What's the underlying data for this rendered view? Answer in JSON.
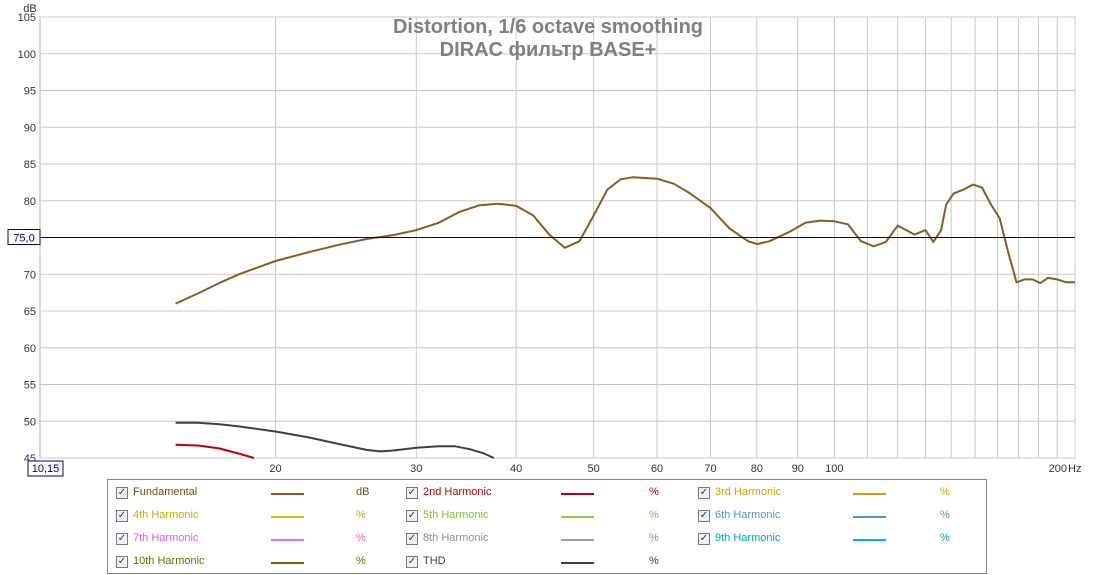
{
  "chart_data": {
    "type": "line",
    "title": "Distortion, 1/6 octave smoothing",
    "subtitle": "DIRAC фильтр BASE+",
    "ylabel": "dB",
    "xunit": "Hz",
    "xscale": "log",
    "xlim": [
      10.15,
      200
    ],
    "ylim": [
      45,
      105
    ],
    "yticks": [
      "105",
      "100",
      "95",
      "90",
      "85",
      "80",
      "75",
      "70",
      "65",
      "60",
      "55",
      "50",
      "45"
    ],
    "xticks": [
      "20",
      "30",
      "40",
      "50",
      "60",
      "70",
      "80",
      "90",
      "100",
      "200"
    ],
    "x_cursor_label": "10,15",
    "y_cursor_label": "75,0",
    "y_cursor_value": 75.0,
    "grid": true,
    "series": [
      {
        "name": "Fundamental",
        "color": "#8b5a2b",
        "points": [
          [
            15,
            66.0
          ],
          [
            16,
            67.4
          ],
          [
            17,
            68.8
          ],
          [
            18,
            70.0
          ],
          [
            20,
            71.8
          ],
          [
            22,
            73.0
          ],
          [
            24,
            74.0
          ],
          [
            26,
            74.8
          ],
          [
            28,
            75.3
          ],
          [
            30,
            76.0
          ],
          [
            32,
            77.0
          ],
          [
            34,
            78.5
          ],
          [
            36,
            79.4
          ],
          [
            38,
            79.6
          ],
          [
            40,
            79.3
          ],
          [
            42,
            78.0
          ],
          [
            44,
            75.4
          ],
          [
            46,
            73.6
          ],
          [
            48,
            74.5
          ],
          [
            50,
            78.0
          ],
          [
            52,
            81.5
          ],
          [
            54,
            82.9
          ],
          [
            56,
            83.2
          ],
          [
            58,
            83.1
          ],
          [
            60,
            83.0
          ],
          [
            63,
            82.3
          ],
          [
            66,
            81.0
          ],
          [
            70,
            79.0
          ],
          [
            74,
            76.2
          ],
          [
            78,
            74.5
          ],
          [
            80,
            74.1
          ],
          [
            83,
            74.5
          ],
          [
            88,
            75.8
          ],
          [
            92,
            77.0
          ],
          [
            96,
            77.3
          ],
          [
            100,
            77.2
          ],
          [
            104,
            76.8
          ],
          [
            108,
            74.5
          ],
          [
            112,
            73.8
          ],
          [
            116,
            74.4
          ],
          [
            120,
            76.6
          ],
          [
            123,
            76.0
          ],
          [
            126,
            75.4
          ],
          [
            130,
            76.0
          ],
          [
            133,
            74.4
          ],
          [
            136,
            76.0
          ],
          [
            138,
            79.5
          ],
          [
            141,
            81.0
          ],
          [
            145,
            81.5
          ],
          [
            149,
            82.2
          ],
          [
            153,
            81.8
          ],
          [
            157,
            79.5
          ],
          [
            161,
            77.6
          ],
          [
            165,
            73.0
          ],
          [
            169,
            68.9
          ],
          [
            173,
            69.3
          ],
          [
            177,
            69.3
          ],
          [
            181,
            68.8
          ],
          [
            185,
            69.5
          ],
          [
            190,
            69.3
          ],
          [
            195,
            68.9
          ],
          [
            200,
            68.9
          ]
        ]
      },
      {
        "name": "2nd Harmonic",
        "color": "#c00000",
        "points": [
          [
            15,
            46.8
          ],
          [
            16,
            46.7
          ],
          [
            17,
            46.3
          ],
          [
            18,
            45.6
          ],
          [
            18.8,
            45.0
          ]
        ]
      },
      {
        "name": "THD",
        "color": "#404040",
        "points": [
          [
            15,
            49.8
          ],
          [
            16,
            49.8
          ],
          [
            17,
            49.6
          ],
          [
            18,
            49.3
          ],
          [
            20,
            48.6
          ],
          [
            22,
            47.8
          ],
          [
            24,
            46.9
          ],
          [
            26,
            46.1
          ],
          [
            27,
            45.9
          ],
          [
            28,
            46.0
          ],
          [
            30,
            46.4
          ],
          [
            32,
            46.6
          ],
          [
            33.5,
            46.6
          ],
          [
            35,
            46.2
          ],
          [
            36.5,
            45.6
          ],
          [
            37.5,
            45.0
          ]
        ]
      }
    ]
  },
  "legend": [
    {
      "label": "Fundamental",
      "unit": "dB",
      "color": "#8b5a2b",
      "text_color": "#7a4a20"
    },
    {
      "label": "2nd Harmonic",
      "unit": "%",
      "color": "#c00000",
      "text_color": "#c00000"
    },
    {
      "label": "3rd Harmonic",
      "unit": "%",
      "color": "#d8a000",
      "text_color": "#d8a000"
    },
    {
      "label": "4th Harmonic",
      "unit": "%",
      "color": "#c8c800",
      "text_color": "#b8b800"
    },
    {
      "label": "5th Harmonic",
      "unit": "%",
      "color": "#90d030",
      "text_color": "#88c030"
    },
    {
      "label": "6th Harmonic",
      "unit": "%",
      "color": "#5b8de0",
      "text_color": "#5b8de0"
    },
    {
      "label": "7th Harmonic",
      "unit": "%",
      "color": "#ee66ee",
      "text_color": "#e060e0"
    },
    {
      "label": "8th Harmonic",
      "unit": "%",
      "color": "#a0a0a0",
      "text_color": "#909090"
    },
    {
      "label": "9th Harmonic",
      "unit": "%",
      "color": "#00b8c8",
      "text_color": "#00a8b8"
    },
    {
      "label": "10th Harmonic",
      "unit": "%",
      "color": "#6b6b00",
      "text_color": "#6b6b00"
    },
    {
      "label": "THD",
      "unit": "%",
      "color": "#404040",
      "text_color": "#404040"
    }
  ],
  "colors": {
    "cursor": "#000080",
    "grid": "#c8c8c8",
    "title": "#808080"
  }
}
